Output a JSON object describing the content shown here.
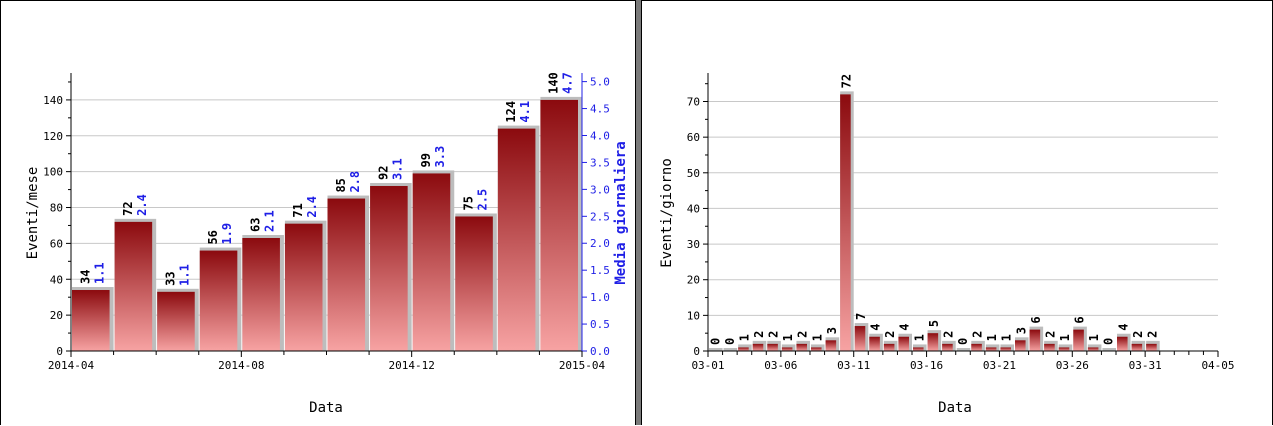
{
  "colors": {
    "bar_top": "#8b0a0e",
    "bar_bottom": "#f7a3a3",
    "bar_shadow": "#bdbdbd",
    "grid": "#c8c8c8",
    "axis": "#000000",
    "secondary_axis": "#1f1fe6",
    "value_label": "#000000",
    "secondary_label": "#1f1fe6"
  },
  "chart_data": [
    {
      "type": "bar",
      "title": "",
      "xlabel": "Data",
      "ylabel": "Eventi/mese",
      "y2label": "Media giornaliera",
      "ylim": [
        0,
        155
      ],
      "y2lim": [
        0,
        5.16
      ],
      "y_ticks": [
        0,
        20,
        40,
        60,
        80,
        100,
        120,
        140
      ],
      "y2_ticks": [
        "0.0",
        "0.5",
        "1.0",
        "1.5",
        "2.0",
        "2.5",
        "3.0",
        "3.5",
        "4.0",
        "4.5",
        "5.0"
      ],
      "x_tick_labels": [
        "2014-04",
        "2014-08",
        "2014-12",
        "2015-04"
      ],
      "categories": [
        "2014-04",
        "2014-05",
        "2014-06",
        "2014-07",
        "2014-08",
        "2014-09",
        "2014-10",
        "2014-11",
        "2014-12",
        "2015-01",
        "2015-02",
        "2015-03"
      ],
      "values": [
        34,
        72,
        33,
        56,
        63,
        71,
        85,
        92,
        99,
        75,
        124,
        140
      ],
      "secondary_values": [
        "1.1",
        "2.4",
        "1.1",
        "1.9",
        "2.1",
        "2.4",
        "2.8",
        "3.1",
        "3.3",
        "2.5",
        "4.1",
        "4.7"
      ],
      "grid": true
    },
    {
      "type": "bar",
      "title": "",
      "xlabel": "Data",
      "ylabel": "Eventi/giorno",
      "ylim": [
        0,
        78
      ],
      "y_ticks": [
        0,
        10,
        20,
        30,
        40,
        50,
        60,
        70
      ],
      "x_tick_labels": [
        "03-01",
        "03-06",
        "03-11",
        "03-16",
        "03-21",
        "03-26",
        "03-31",
        "04-05"
      ],
      "categories": [
        "03-01",
        "03-02",
        "03-03",
        "03-04",
        "03-05",
        "03-06",
        "03-07",
        "03-08",
        "03-09",
        "03-10",
        "03-11",
        "03-12",
        "03-13",
        "03-14",
        "03-15",
        "03-16",
        "03-17",
        "03-18",
        "03-19",
        "03-20",
        "03-21",
        "03-22",
        "03-23",
        "03-24",
        "03-25",
        "03-26",
        "03-27",
        "03-28",
        "03-29",
        "03-30",
        "03-31"
      ],
      "values": [
        0,
        0,
        1,
        2,
        2,
        1,
        2,
        1,
        3,
        72,
        7,
        4,
        2,
        4,
        1,
        5,
        2,
        0,
        2,
        1,
        1,
        3,
        6,
        2,
        1,
        6,
        1,
        0,
        4,
        2,
        2
      ],
      "grid": true
    }
  ]
}
